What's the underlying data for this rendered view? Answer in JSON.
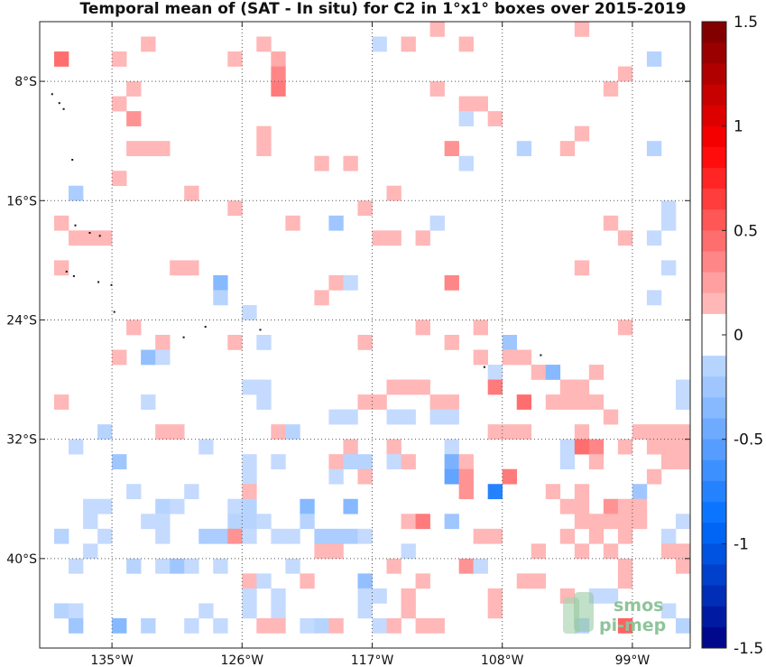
{
  "chart_data": {
    "type": "heatmap",
    "title": "Temporal mean of (SAT - In situ) for C2 in 1°x1° boxes over 2015-2019",
    "xlim": [
      -140,
      -95
    ],
    "ylim": [
      -46,
      -4
    ],
    "x_ticks": [
      {
        "value": -135,
        "label": "135°W"
      },
      {
        "value": -126,
        "label": "126°W"
      },
      {
        "value": -117,
        "label": "117°W"
      },
      {
        "value": -108,
        "label": "108°W"
      },
      {
        "value": -99,
        "label": "99°W"
      }
    ],
    "y_ticks": [
      {
        "value": -8,
        "label": "8°S"
      },
      {
        "value": -16,
        "label": "16°S"
      },
      {
        "value": -24,
        "label": "24°S"
      },
      {
        "value": -32,
        "label": "32°S"
      },
      {
        "value": -40,
        "label": "40°S"
      }
    ],
    "grid": "dotted",
    "colorbar": {
      "min": -1.5,
      "max": 1.5,
      "levels": 30,
      "position": "right",
      "ticks": [
        {
          "value": 1.5,
          "label": "1.5"
        },
        {
          "value": 1,
          "label": "1"
        },
        {
          "value": 0.5,
          "label": "0.5"
        },
        {
          "value": 0,
          "label": "0"
        },
        {
          "value": -0.5,
          "label": "-0.5"
        },
        {
          "value": -1,
          "label": "-1"
        },
        {
          "value": -1.5,
          "label": "-1.5"
        }
      ]
    },
    "cells": [
      [
        -133,
        -5,
        0.15
      ],
      [
        -125,
        -5,
        0.15
      ],
      [
        -117,
        -5,
        -0.1
      ],
      [
        -115,
        -5,
        0.15
      ],
      [
        -113,
        -4,
        0.15
      ],
      [
        -111,
        -5,
        0.15
      ],
      [
        -103,
        -4,
        0.15
      ],
      [
        -139,
        -6,
        0.45
      ],
      [
        -135,
        -6,
        0.15
      ],
      [
        -127,
        -6,
        0.15
      ],
      [
        -124,
        -6,
        0.2
      ],
      [
        -100,
        -7,
        0.15
      ],
      [
        -98,
        -6,
        -0.15
      ],
      [
        -124,
        -7,
        0.35
      ],
      [
        -124,
        -8,
        0.4
      ],
      [
        -134,
        -8,
        0.15
      ],
      [
        -113,
        -8,
        0.15
      ],
      [
        -110,
        -9,
        0.15
      ],
      [
        -101,
        -8,
        0.15
      ],
      [
        -135,
        -9,
        0.15
      ],
      [
        -111,
        -9,
        0.15
      ],
      [
        -134,
        -10,
        0.3
      ],
      [
        -111,
        -10,
        -0.1
      ],
      [
        -109,
        -10,
        0.15
      ],
      [
        -103,
        -11,
        0.15
      ],
      [
        -125,
        -11,
        0.15
      ],
      [
        -134,
        -12,
        0.15
      ],
      [
        -133,
        -12,
        0.15
      ],
      [
        -132,
        -12,
        0.15
      ],
      [
        -125,
        -12,
        0.15
      ],
      [
        -112,
        -12,
        0.3
      ],
      [
        -107,
        -12,
        -0.15
      ],
      [
        -104,
        -12,
        0.15
      ],
      [
        -98,
        -12,
        -0.15
      ],
      [
        -121,
        -13,
        0.15
      ],
      [
        -119,
        -13,
        0.15
      ],
      [
        -111,
        -13,
        -0.1
      ],
      [
        -135,
        -14,
        0.15
      ],
      [
        -138,
        -15,
        -0.2
      ],
      [
        -130,
        -15,
        0.15
      ],
      [
        -116,
        -15,
        0.15
      ],
      [
        -127,
        -16,
        0.15
      ],
      [
        -118,
        -16,
        0.15
      ],
      [
        -123,
        -17,
        0.15
      ],
      [
        -120,
        -17,
        -0.25
      ],
      [
        -113,
        -17,
        -0.1
      ],
      [
        -139,
        -17,
        0.15
      ],
      [
        -101,
        -17,
        0.15
      ],
      [
        -97,
        -16,
        -0.1
      ],
      [
        -97,
        -17,
        -0.1
      ],
      [
        -138,
        -18,
        0.15
      ],
      [
        -137,
        -18,
        0.15
      ],
      [
        -136,
        -18,
        0.15
      ],
      [
        -117,
        -18,
        0.15
      ],
      [
        -116,
        -18,
        0.15
      ],
      [
        -114,
        -18,
        0.15
      ],
      [
        -100,
        -18,
        0.15
      ],
      [
        -98,
        -18,
        -0.1
      ],
      [
        -139,
        -20,
        0.15
      ],
      [
        -131,
        -20,
        0.15
      ],
      [
        -130,
        -20,
        0.15
      ],
      [
        -128,
        -21,
        -0.35
      ],
      [
        -120,
        -21,
        0.15
      ],
      [
        -119,
        -21,
        -0.1
      ],
      [
        -112,
        -21,
        0.35
      ],
      [
        -103,
        -20,
        0.15
      ],
      [
        -97,
        -20,
        -0.1
      ],
      [
        -128,
        -22,
        -0.15
      ],
      [
        -126,
        -23,
        -0.1
      ],
      [
        -121,
        -22,
        0.15
      ],
      [
        -98,
        -22,
        -0.1
      ],
      [
        -134,
        -24,
        0.15
      ],
      [
        -114,
        -24,
        0.15
      ],
      [
        -110,
        -24,
        0.15
      ],
      [
        -100,
        -24,
        0.15
      ],
      [
        -132,
        -25,
        0.15
      ],
      [
        -127,
        -25,
        0.15
      ],
      [
        -125,
        -25,
        -0.1
      ],
      [
        -118,
        -25,
        0.15
      ],
      [
        -112,
        -25,
        0.15
      ],
      [
        -108,
        -25,
        -0.25
      ],
      [
        -135,
        -26,
        0.15
      ],
      [
        -133,
        -26,
        -0.3
      ],
      [
        -132,
        -26,
        -0.1
      ],
      [
        -110,
        -26,
        0.15
      ],
      [
        -108,
        -26,
        0.15
      ],
      [
        -107,
        -26,
        0.15
      ],
      [
        -109,
        -27,
        -0.1
      ],
      [
        -106,
        -27,
        0.15
      ],
      [
        -105,
        -27,
        -0.35
      ],
      [
        -102,
        -27,
        0.15
      ],
      [
        -126,
        -28,
        -0.1
      ],
      [
        -125,
        -28,
        -0.1
      ],
      [
        -114,
        -28,
        0.15
      ],
      [
        -116,
        -28,
        0.15
      ],
      [
        -115,
        -28,
        0.15
      ],
      [
        -109,
        -28,
        0.4
      ],
      [
        -104,
        -28,
        0.15
      ],
      [
        -103,
        -28,
        0.15
      ],
      [
        -96,
        -28,
        -0.1
      ],
      [
        -139,
        -29,
        0.15
      ],
      [
        -133,
        -29,
        -0.1
      ],
      [
        -125,
        -29,
        -0.1
      ],
      [
        -118,
        -29,
        0.15
      ],
      [
        -117,
        -29,
        0.15
      ],
      [
        -113,
        -29,
        0.15
      ],
      [
        -112,
        -29,
        0.15
      ],
      [
        -107,
        -29,
        0.45
      ],
      [
        -105,
        -29,
        0.15
      ],
      [
        -104,
        -29,
        0.15
      ],
      [
        -103,
        -29,
        0.15
      ],
      [
        -102,
        -29,
        0.15
      ],
      [
        -96,
        -29,
        -0.1
      ],
      [
        -120,
        -30,
        -0.1
      ],
      [
        -119,
        -30,
        -0.1
      ],
      [
        -116,
        -30,
        -0.1
      ],
      [
        -115,
        -30,
        -0.1
      ],
      [
        -113,
        -30,
        -0.1
      ],
      [
        -112,
        -30,
        -0.1
      ],
      [
        -101,
        -30,
        0.15
      ],
      [
        -136,
        -31,
        -0.15
      ],
      [
        -132,
        -31,
        0.15
      ],
      [
        -131,
        -31,
        0.15
      ],
      [
        -124,
        -31,
        0.15
      ],
      [
        -123,
        -31,
        -0.15
      ],
      [
        -109,
        -31,
        0.15
      ],
      [
        -108,
        -31,
        0.15
      ],
      [
        -107,
        -31,
        0.15
      ],
      [
        -103,
        -31,
        0.15
      ],
      [
        -99,
        -31,
        0.15
      ],
      [
        -98,
        -31,
        0.15
      ],
      [
        -97,
        -31,
        0.15
      ],
      [
        -96,
        -31,
        0.15
      ],
      [
        -138,
        -32,
        -0.1
      ],
      [
        -129,
        -32,
        -0.1
      ],
      [
        -119,
        -32,
        0.15
      ],
      [
        -116,
        -32,
        0.15
      ],
      [
        -112,
        -32,
        -0.1
      ],
      [
        -104,
        -32,
        -0.1
      ],
      [
        -103,
        -32,
        0.45
      ],
      [
        -102,
        -32,
        0.35
      ],
      [
        -100,
        -32,
        0.15
      ],
      [
        -98,
        -32,
        0.15
      ],
      [
        -97,
        -32,
        0.15
      ],
      [
        -96,
        -32,
        0.15
      ],
      [
        -135,
        -33,
        -0.25
      ],
      [
        -126,
        -33,
        -0.1
      ],
      [
        -124,
        -33,
        -0.1
      ],
      [
        -120,
        -33,
        0.15
      ],
      [
        -119,
        -33,
        -0.15
      ],
      [
        -118,
        -33,
        -0.15
      ],
      [
        -116,
        -33,
        -0.1
      ],
      [
        -115,
        -33,
        0.15
      ],
      [
        -112,
        -33,
        -0.4
      ],
      [
        -111,
        -33,
        0.15
      ],
      [
        -104,
        -33,
        -0.1
      ],
      [
        -102,
        -33,
        0.15
      ],
      [
        -97,
        -33,
        0.15
      ],
      [
        -96,
        -33,
        0.15
      ],
      [
        -112,
        -34,
        -0.5
      ],
      [
        -111,
        -34,
        0.3
      ],
      [
        -108,
        -34,
        0.4
      ],
      [
        -98,
        -34,
        0.15
      ],
      [
        -126,
        -34,
        -0.1
      ],
      [
        -120,
        -34,
        -0.1
      ],
      [
        -118,
        -34,
        0.15
      ],
      [
        -134,
        -35,
        -0.1
      ],
      [
        -130,
        -35,
        -0.1
      ],
      [
        -126,
        -35,
        0.15
      ],
      [
        -111,
        -35,
        0.3
      ],
      [
        -109,
        -35,
        -0.75
      ],
      [
        -105,
        -35,
        0.15
      ],
      [
        -103,
        -35,
        0.15
      ],
      [
        -99,
        -35,
        -0.25
      ],
      [
        -137,
        -36,
        -0.1
      ],
      [
        -136,
        -36,
        -0.1
      ],
      [
        -132,
        -36,
        -0.15
      ],
      [
        -131,
        -36,
        -0.1
      ],
      [
        -127,
        -36,
        -0.1
      ],
      [
        -126,
        -36,
        -0.15
      ],
      [
        -122,
        -36,
        -0.35
      ],
      [
        -119,
        -36,
        -0.35
      ],
      [
        -104,
        -36,
        0.15
      ],
      [
        -103,
        -36,
        0.15
      ],
      [
        -101,
        -36,
        0.3
      ],
      [
        -100,
        -36,
        0.15
      ],
      [
        -99,
        -36,
        0.15
      ],
      [
        -137,
        -37,
        -0.1
      ],
      [
        -133,
        -37,
        -0.1
      ],
      [
        -132,
        -37,
        -0.1
      ],
      [
        -127,
        -37,
        -0.15
      ],
      [
        -126,
        -37,
        -0.15
      ],
      [
        -125,
        -37,
        -0.1
      ],
      [
        -122,
        -37,
        -0.15
      ],
      [
        -115,
        -37,
        0.15
      ],
      [
        -114,
        -37,
        0.4
      ],
      [
        -112,
        -37,
        -0.25
      ],
      [
        -103,
        -37,
        0.15
      ],
      [
        -102,
        -37,
        0.15
      ],
      [
        -101,
        -37,
        0.15
      ],
      [
        -100,
        -37,
        0.15
      ],
      [
        -99,
        -37,
        0.15
      ],
      [
        -96,
        -37,
        -0.1
      ],
      [
        -139,
        -38,
        -0.15
      ],
      [
        -136,
        -38,
        -0.1
      ],
      [
        -132,
        -38,
        -0.1
      ],
      [
        -129,
        -38,
        -0.2
      ],
      [
        -128,
        -38,
        -0.2
      ],
      [
        -127,
        -38,
        0.3
      ],
      [
        -126,
        -38,
        -0.1
      ],
      [
        -124,
        -38,
        -0.1
      ],
      [
        -123,
        -38,
        -0.1
      ],
      [
        -121,
        -38,
        -0.2
      ],
      [
        -120,
        -38,
        -0.2
      ],
      [
        -119,
        -38,
        -0.2
      ],
      [
        -118,
        -38,
        -0.1
      ],
      [
        -110,
        -38,
        0.15
      ],
      [
        -109,
        -38,
        0.15
      ],
      [
        -104,
        -38,
        0.15
      ],
      [
        -102,
        -38,
        0.15
      ],
      [
        -100,
        -38,
        0.15
      ],
      [
        -97,
        -38,
        -0.1
      ],
      [
        -137,
        -39,
        -0.1
      ],
      [
        -121,
        -39,
        0.15
      ],
      [
        -120,
        -39,
        0.15
      ],
      [
        -115,
        -39,
        -0.1
      ],
      [
        -106,
        -39,
        0.15
      ],
      [
        -103,
        -39,
        0.15
      ],
      [
        -101,
        -39,
        0.15
      ],
      [
        -97,
        -39,
        0.15
      ],
      [
        -96,
        -39,
        0.15
      ],
      [
        -138,
        -40,
        -0.1
      ],
      [
        -134,
        -40,
        -0.15
      ],
      [
        -132,
        -40,
        -0.1
      ],
      [
        -131,
        -40,
        -0.25
      ],
      [
        -130,
        -40,
        -0.1
      ],
      [
        -128,
        -40,
        -0.1
      ],
      [
        -123,
        -40,
        -0.1
      ],
      [
        -116,
        -40,
        0.15
      ],
      [
        -111,
        -40,
        0.3
      ],
      [
        -110,
        -40,
        -0.1
      ],
      [
        -100,
        -40,
        0.15
      ],
      [
        -96,
        -40,
        0.15
      ],
      [
        -126,
        -41,
        0.15
      ],
      [
        -125,
        -41,
        -0.1
      ],
      [
        -122,
        -41,
        0.15
      ],
      [
        -118,
        -41,
        -0.3
      ],
      [
        -114,
        -41,
        0.15
      ],
      [
        -107,
        -41,
        0.15
      ],
      [
        -106,
        -41,
        0.15
      ],
      [
        -100,
        -41,
        0.15
      ],
      [
        -126,
        -42,
        -0.1
      ],
      [
        -124,
        -42,
        -0.1
      ],
      [
        -118,
        -42,
        -0.1
      ],
      [
        -117,
        -42,
        -0.1
      ],
      [
        -115,
        -42,
        0.15
      ],
      [
        -109,
        -42,
        0.15
      ],
      [
        -104,
        -42,
        0.15
      ],
      [
        -102,
        -42,
        -0.1
      ],
      [
        -101,
        -42,
        -0.1
      ],
      [
        -139,
        -43,
        -0.15
      ],
      [
        -138,
        -43,
        -0.1
      ],
      [
        -129,
        -43,
        -0.1
      ],
      [
        -126,
        -43,
        -0.1
      ],
      [
        -124,
        -43,
        -0.1
      ],
      [
        -118,
        -43,
        -0.1
      ],
      [
        -115,
        -43,
        0.15
      ],
      [
        -109,
        -43,
        0.15
      ],
      [
        -97,
        -43,
        -0.1
      ],
      [
        -138,
        -44,
        -0.25
      ],
      [
        -135,
        -44,
        -0.35
      ],
      [
        -133,
        -44,
        -0.15
      ],
      [
        -130,
        -44,
        -0.1
      ],
      [
        -128,
        -44,
        -0.1
      ],
      [
        -125,
        -44,
        0.15
      ],
      [
        -124,
        -44,
        0.15
      ],
      [
        -122,
        -44,
        -0.1
      ],
      [
        -121,
        -44,
        -0.15
      ],
      [
        -120,
        -44,
        0.15
      ],
      [
        -117,
        -44,
        -0.1
      ],
      [
        -116,
        -44,
        0.15
      ],
      [
        -114,
        -44,
        0.15
      ],
      [
        -113,
        -44,
        0.15
      ],
      [
        -103,
        -44,
        -0.15
      ],
      [
        -100,
        -44,
        0.5
      ],
      [
        -96,
        -44,
        -0.15
      ]
    ]
  },
  "logo": {
    "line1": "smos",
    "line2": "pi-mep"
  }
}
